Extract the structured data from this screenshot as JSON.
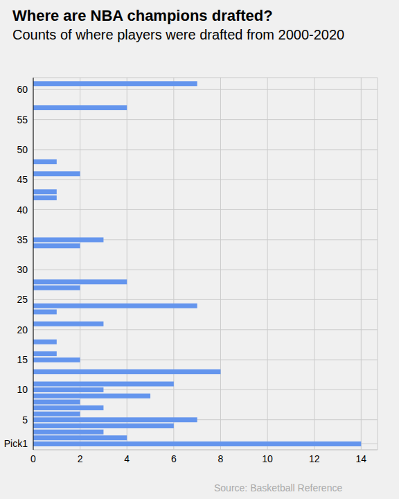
{
  "chart_data": {
    "type": "bar",
    "orientation": "horizontal",
    "title": "Where are NBA champions drafted?",
    "subtitle": "Counts of where players were drafted from 2000-2020",
    "source": "Source: Basketball Reference",
    "x": [
      1,
      2,
      3,
      4,
      5,
      6,
      7,
      8,
      9,
      10,
      11,
      13,
      15,
      16,
      18,
      21,
      23,
      24,
      27,
      28,
      34,
      35,
      42,
      43,
      46,
      48,
      57,
      61
    ],
    "values": [
      14,
      4,
      3,
      6,
      7,
      2,
      3,
      2,
      5,
      3,
      6,
      8,
      2,
      1,
      1,
      3,
      1,
      7,
      2,
      4,
      2,
      3,
      1,
      1,
      2,
      1,
      4,
      7
    ],
    "color": "#6495ed",
    "xlim": [
      0,
      62
    ],
    "xticks": [
      {
        "value": 1,
        "label": "Pick1"
      },
      5,
      10,
      15,
      20,
      25,
      30,
      35,
      40,
      45,
      50,
      55,
      60
    ],
    "ylim": [
      0,
      14.7
    ],
    "yticks": [
      0,
      2,
      4,
      6,
      8,
      10,
      12,
      14
    ],
    "grid": true
  }
}
